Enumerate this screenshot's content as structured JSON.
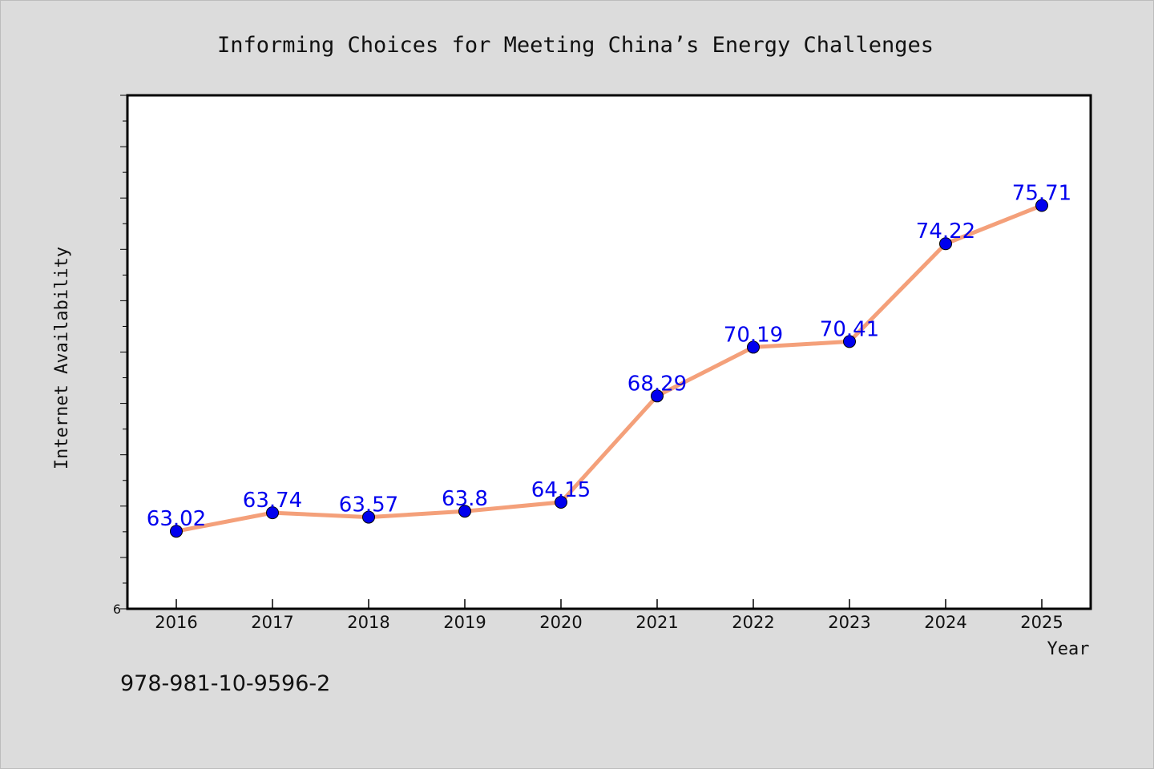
{
  "chart_data": {
    "type": "line",
    "title": "Informing Choices for Meeting China’s Energy Challenges",
    "xlabel": "Year",
    "ylabel": "Internet Availability",
    "categories": [
      "2016",
      "2017",
      "2018",
      "2019",
      "2020",
      "2021",
      "2022",
      "2023",
      "2024",
      "2025"
    ],
    "series": [
      {
        "values": [
          63.02,
          63.74,
          63.57,
          63.8,
          64.15,
          68.29,
          70.19,
          70.41,
          74.22,
          75.71
        ],
        "labels": [
          "63.02",
          "63.74",
          "63.57",
          "63.8",
          "64.15",
          "68.29",
          "70.19",
          "70.41",
          "74.22",
          "75.71"
        ],
        "line_color": "#f4a07a",
        "marker_color": "#0000ee"
      }
    ],
    "ylim": [
      60,
      80
    ],
    "ytick_label": "6",
    "grid": false,
    "legend": "none"
  },
  "footer": {
    "isbn": "978-981-10-9596-2"
  }
}
